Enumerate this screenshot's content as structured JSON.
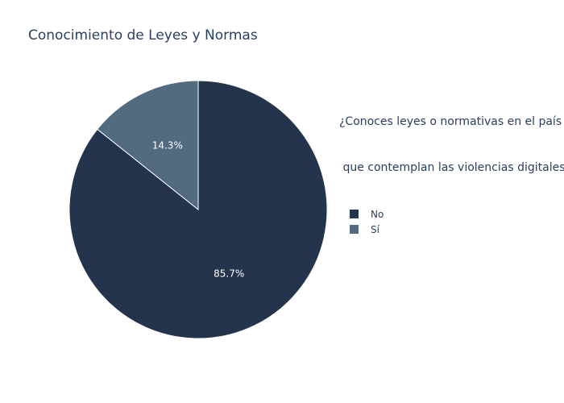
{
  "chart_data": {
    "type": "pie",
    "title": "Conocimiento de Leyes y Normas",
    "legend_title_lines": [
      "¿Conoces leyes o normativas en el país",
      " que contemplan las violencias digitales?"
    ],
    "legend_position": "top-right",
    "labels": [
      "No",
      "Sí"
    ],
    "values": [
      85.7,
      14.3
    ],
    "text_labels": [
      "85.7%",
      "14.3%"
    ],
    "colors": [
      "#25344d",
      "#526b80"
    ],
    "direction": "clockwise",
    "start": "top"
  }
}
